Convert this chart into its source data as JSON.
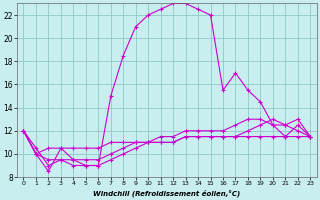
{
  "xlabel": "Windchill (Refroidissement éolien,°C)",
  "bg_color": "#c8eef0",
  "grid_color": "#90c8c8",
  "line_color": "#cc00cc",
  "marker": "+",
  "xlim": [
    -0.5,
    23.5
  ],
  "ylim": [
    8,
    23
  ],
  "yticks": [
    8,
    10,
    12,
    14,
    16,
    18,
    20,
    22
  ],
  "xticks": [
    0,
    1,
    2,
    3,
    4,
    5,
    6,
    7,
    8,
    9,
    10,
    11,
    12,
    13,
    14,
    15,
    16,
    17,
    18,
    19,
    20,
    21,
    22,
    23
  ],
  "main_line_x": [
    0,
    1,
    2,
    3,
    4,
    5,
    6,
    7,
    8,
    9,
    10,
    11,
    12,
    13,
    14,
    15,
    16,
    17,
    18,
    19,
    20,
    21,
    22,
    23
  ],
  "main_line_y": [
    12,
    10,
    8.5,
    10.5,
    9.5,
    9.0,
    9.0,
    15.0,
    18.5,
    21.0,
    22.0,
    22.5,
    23.0,
    23.0,
    22.5,
    22.0,
    15.5,
    17.0,
    15.5,
    14.5,
    12.5,
    12.5,
    13.0,
    11.5
  ],
  "flat_line1_x": [
    0,
    1,
    2,
    3,
    4,
    5,
    6,
    7,
    8,
    9,
    10,
    11,
    12,
    13,
    14,
    15,
    16,
    17,
    18,
    19,
    20,
    21,
    22,
    23
  ],
  "flat_line1_y": [
    12,
    10,
    10.5,
    10.5,
    10.5,
    10.5,
    10.5,
    11.0,
    11.0,
    11.0,
    11.0,
    11.0,
    11.0,
    11.5,
    11.5,
    11.5,
    11.5,
    11.5,
    12.0,
    12.5,
    13.0,
    12.5,
    12.0,
    11.5
  ],
  "flat_line2_x": [
    0,
    1,
    2,
    3,
    4,
    5,
    6,
    7,
    8,
    9,
    10,
    11,
    12,
    13,
    14,
    15,
    16,
    17,
    18,
    19,
    20,
    21,
    22,
    23
  ],
  "flat_line2_y": [
    12,
    10,
    9.5,
    9.5,
    9.5,
    9.5,
    9.5,
    10.0,
    10.5,
    11.0,
    11.0,
    11.0,
    11.0,
    11.5,
    11.5,
    11.5,
    11.5,
    11.5,
    11.5,
    11.5,
    11.5,
    11.5,
    11.5,
    11.5
  ],
  "flat_line3_x": [
    0,
    1,
    2,
    3,
    4,
    5,
    6,
    7,
    8,
    9,
    10,
    11,
    12,
    13,
    14,
    15,
    16,
    17,
    18,
    19,
    20,
    21,
    22,
    23
  ],
  "flat_line3_y": [
    12,
    10.5,
    9.0,
    9.5,
    9.0,
    9.0,
    9.0,
    9.5,
    10.0,
    10.5,
    11.0,
    11.5,
    11.5,
    12.0,
    12.0,
    12.0,
    12.0,
    12.5,
    13.0,
    13.0,
    12.5,
    11.5,
    12.5,
    11.5
  ]
}
